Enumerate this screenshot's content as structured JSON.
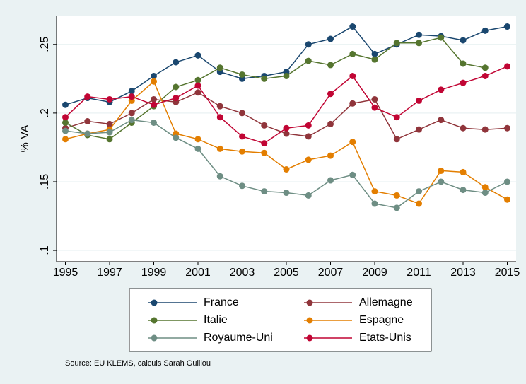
{
  "chart_data": {
    "type": "line",
    "y_label": "% VA",
    "source": "Source: EU KLEMS, calculs Sarah Guillou",
    "x": [
      1995,
      1996,
      1997,
      1998,
      1999,
      2000,
      2001,
      2002,
      2003,
      2004,
      2005,
      2006,
      2007,
      2008,
      2009,
      2010,
      2011,
      2012,
      2013,
      2014,
      2015
    ],
    "xlim": [
      1994.6,
      2015.4
    ],
    "xticks": [
      1995,
      1997,
      1999,
      2001,
      2003,
      2005,
      2007,
      2009,
      2011,
      2013,
      2015
    ],
    "ylim": [
      0.0918,
      0.271
    ],
    "yticks": [
      {
        "value": 0.1,
        "label": ".1"
      },
      {
        "value": 0.15,
        "label": ".15"
      },
      {
        "value": 0.2,
        "label": ".2"
      },
      {
        "value": 0.25,
        "label": ".25"
      }
    ],
    "grid": true,
    "legend": "bottom",
    "series": [
      {
        "name": "France",
        "color": "#1a476f",
        "values": [
          0.206,
          0.211,
          0.208,
          0.216,
          0.227,
          0.237,
          0.242,
          0.23,
          0.225,
          0.227,
          0.23,
          0.25,
          0.254,
          0.263,
          0.243,
          0.25,
          0.257,
          0.256,
          0.253,
          0.26,
          0.263
        ]
      },
      {
        "name": "Allemagne",
        "color": "#90353b",
        "values": [
          0.189,
          0.194,
          0.192,
          0.2,
          0.21,
          0.208,
          0.215,
          0.205,
          0.2,
          0.191,
          0.185,
          0.183,
          0.192,
          0.207,
          0.21,
          0.181,
          0.188,
          0.195,
          0.189,
          0.188,
          0.189
        ]
      },
      {
        "name": "Italie",
        "color": "#55752f",
        "values": [
          0.193,
          0.184,
          0.181,
          0.193,
          0.205,
          0.219,
          0.224,
          0.233,
          0.228,
          0.225,
          0.227,
          0.238,
          0.235,
          0.243,
          0.239,
          0.251,
          0.251,
          0.255,
          0.236,
          0.233,
          null
        ]
      },
      {
        "name": "Espagne",
        "color": "#e37e00",
        "values": [
          0.181,
          0.185,
          0.188,
          0.209,
          0.223,
          0.185,
          0.181,
          0.174,
          0.172,
          0.171,
          0.159,
          0.166,
          0.169,
          0.179,
          0.143,
          0.14,
          0.134,
          0.158,
          0.157,
          0.146,
          0.137
        ]
      },
      {
        "name": "Royaume-Uni",
        "color": "#6e8e84",
        "values": [
          0.187,
          0.185,
          0.186,
          0.195,
          0.193,
          0.182,
          0.174,
          0.154,
          0.147,
          0.143,
          0.142,
          0.14,
          0.151,
          0.155,
          0.134,
          0.131,
          0.143,
          0.15,
          0.144,
          0.142,
          0.15
        ]
      },
      {
        "name": "Etats-Unis",
        "color": "#c10534",
        "values": [
          0.197,
          0.212,
          0.21,
          0.212,
          0.206,
          0.211,
          0.22,
          0.197,
          0.183,
          0.178,
          0.189,
          0.191,
          0.214,
          0.227,
          0.204,
          0.197,
          0.209,
          0.217,
          0.222,
          0.227,
          0.234
        ]
      }
    ]
  }
}
